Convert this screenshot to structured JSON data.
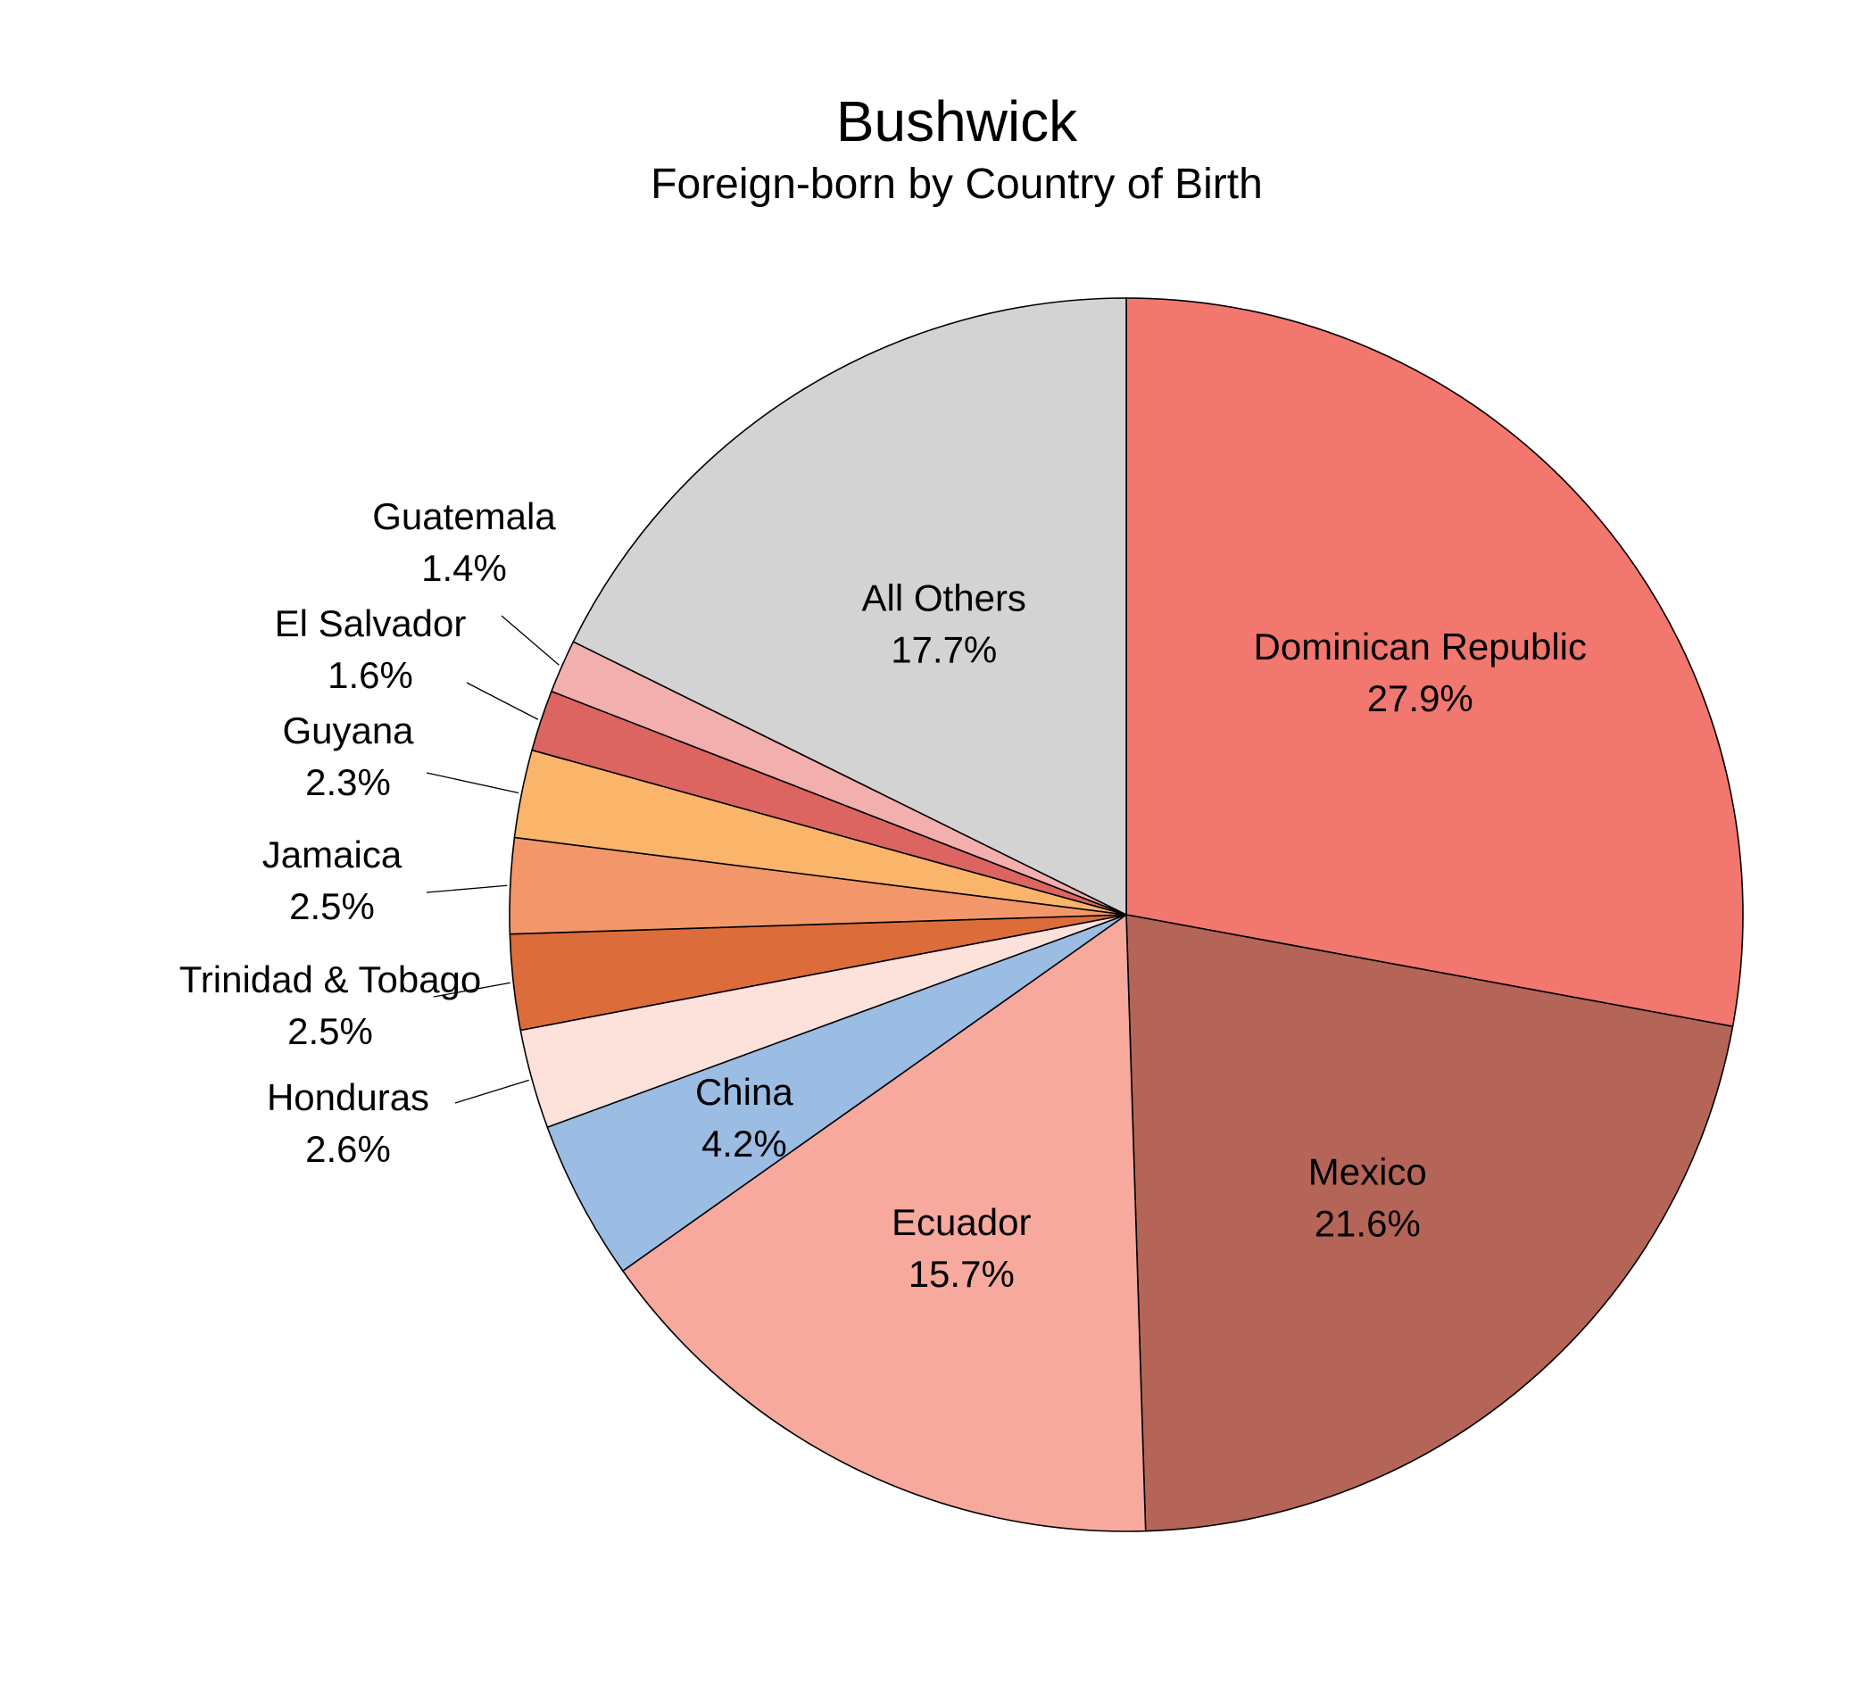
{
  "chart_data": {
    "type": "pie",
    "title": "Bushwick",
    "subtitle": "Foreign-born by Country of Birth",
    "slices": [
      {
        "label": "Dominican Republic",
        "value": 27.9,
        "value_label": "27.9%",
        "color": "#F2776F"
      },
      {
        "label": "Mexico",
        "value": 21.6,
        "value_label": "21.6%",
        "color": "#B56558"
      },
      {
        "label": "Ecuador",
        "value": 15.7,
        "value_label": "15.7%",
        "color": "#F7A99E"
      },
      {
        "label": "China",
        "value": 4.2,
        "value_label": "4.2%",
        "color": "#9BBCE3"
      },
      {
        "label": "Honduras",
        "value": 2.6,
        "value_label": "2.6%",
        "color": "#FDE1DB"
      },
      {
        "label": "Trinidad & Tobago",
        "value": 2.5,
        "value_label": "2.5%",
        "color": "#DD6C3B"
      },
      {
        "label": "Jamaica",
        "value": 2.5,
        "value_label": "2.5%",
        "color": "#F3976A"
      },
      {
        "label": "Guyana",
        "value": 2.3,
        "value_label": "2.3%",
        "color": "#FAB56A"
      },
      {
        "label": "El Salvador",
        "value": 1.6,
        "value_label": "1.6%",
        "color": "#DC6562"
      },
      {
        "label": "Guatemala",
        "value": 1.4,
        "value_label": "1.4%",
        "color": "#F2AFAE"
      },
      {
        "label": "All Others",
        "value": 17.7,
        "value_label": "17.7%",
        "color": "#D3D3D3"
      }
    ],
    "start_angle": "12 o'clock",
    "direction": "clockwise"
  }
}
